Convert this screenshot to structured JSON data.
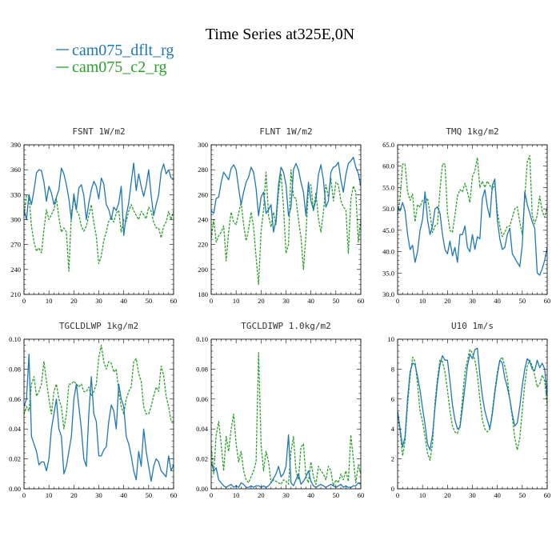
{
  "figure": {
    "title": "Time Series at325E,0N",
    "legend": [
      {
        "name": "cam075_dflt_rg",
        "color": "#1f77b4",
        "dash": "solid"
      },
      {
        "name": "cam075_c2_rg",
        "color": "#2ca02c",
        "dash": "dashed"
      }
    ]
  },
  "chart_data": [
    {
      "type": "line",
      "title": "FSNT   1W/m2",
      "xlim": [
        0,
        60
      ],
      "ylim": [
        210,
        390
      ],
      "xticks": [
        0,
        10,
        20,
        30,
        40,
        50,
        60
      ],
      "yticks": [
        210,
        240,
        270,
        300,
        330,
        360,
        390
      ],
      "ytick_labels": [
        "210",
        "240",
        "270",
        "300",
        "330",
        "360",
        "390"
      ],
      "series": [
        {
          "name": "cam075_dflt_rg",
          "color": "#1f77b4",
          "values": [
            312,
            300,
            330,
            318,
            335,
            356,
            360,
            359,
            345,
            322,
            340,
            332,
            318,
            327,
            336,
            362,
            355,
            342,
            325,
            300,
            331,
            312,
            338,
            342,
            329,
            300,
            320,
            336,
            346,
            340,
            325,
            350,
            343,
            318,
            312,
            300,
            315,
            311,
            320,
            340,
            281,
            305,
            320,
            345,
            368,
            335,
            355,
            340,
            328,
            341,
            360,
            329,
            305,
            318,
            330,
            357,
            367,
            355,
            360,
            350,
            349
          ]
        },
        {
          "name": "cam075_c2_rg",
          "color": "#2ca02c",
          "values": [
            305,
            329,
            328,
            292,
            273,
            262,
            266,
            260,
            288,
            312,
            300,
            306,
            312,
            325,
            302,
            285,
            290,
            285,
            238,
            307,
            325,
            311,
            306,
            292,
            286,
            292,
            305,
            318,
            296,
            280,
            247,
            256,
            275,
            285,
            298,
            303,
            297,
            308,
            311,
            285,
            300,
            298,
            310,
            318,
            311,
            305,
            300,
            310,
            306,
            301,
            315,
            310,
            297,
            290,
            290,
            278,
            292,
            297,
            310,
            300,
            310
          ]
        }
      ]
    },
    {
      "type": "line",
      "title": "FLNT   1W/m2",
      "xlim": [
        0,
        60
      ],
      "ylim": [
        180,
        300
      ],
      "xticks": [
        0,
        10,
        20,
        30,
        40,
        50,
        60
      ],
      "yticks": [
        180,
        200,
        220,
        240,
        260,
        280,
        300
      ],
      "ytick_labels": [
        "180",
        "200",
        "220",
        "240",
        "260",
        "280",
        "300"
      ],
      "series": [
        {
          "name": "cam075_dflt_rg",
          "color": "#1f77b4",
          "values": [
            247,
            245,
            257,
            258,
            270,
            278,
            275,
            272,
            281,
            284,
            280,
            265,
            252,
            262,
            270,
            274,
            282,
            278,
            265,
            243,
            258,
            262,
            245,
            248,
            252,
            230,
            240,
            268,
            282,
            278,
            268,
            243,
            250,
            280,
            285,
            280,
            270,
            262,
            243,
            270,
            255,
            248,
            256,
            276,
            284,
            272,
            250,
            255,
            278,
            282,
            283,
            286,
            272,
            262,
            276,
            285,
            287,
            290,
            282,
            277,
            267
          ]
        },
        {
          "name": "cam075_c2_rg",
          "color": "#2ca02c",
          "values": [
            225,
            240,
            222,
            227,
            230,
            235,
            207,
            230,
            246,
            238,
            236,
            245,
            254,
            236,
            223,
            232,
            246,
            234,
            210,
            188,
            230,
            248,
            278,
            243,
            234,
            246,
            236,
            262,
            277,
            250,
            213,
            220,
            280,
            258,
            257,
            240,
            226,
            200,
            228,
            265,
            268,
            247,
            262,
            241,
            230,
            246,
            268,
            258,
            273,
            255,
            270,
            268,
            255,
            250,
            248,
            213,
            256,
            267,
            262,
            222,
            240
          ]
        }
      ]
    },
    {
      "type": "line",
      "title": "TMQ   1kg/m2",
      "xlim": [
        0,
        60
      ],
      "ylim": [
        30,
        65
      ],
      "xticks": [
        0,
        10,
        20,
        30,
        40,
        50,
        60
      ],
      "yticks": [
        30,
        35,
        40,
        45,
        50,
        55,
        60,
        65
      ],
      "ytick_labels": [
        "30.0",
        "35.0",
        "40.0",
        "45.0",
        "50.0",
        "55.0",
        "60.0",
        "65.0"
      ],
      "series": [
        {
          "name": "cam075_dflt_rg",
          "color": "#1f77b4",
          "values": [
            50.5,
            49.5,
            51.5,
            49.5,
            44,
            40.5,
            41.5,
            37.5,
            40,
            45,
            47.5,
            54,
            47.5,
            44,
            46,
            50,
            50.5,
            49,
            44,
            40.5,
            39.5,
            42.5,
            39,
            41,
            37.5,
            44,
            44,
            46,
            41,
            40,
            44,
            40.5,
            43.5,
            43,
            52.5,
            54.5,
            50.5,
            48,
            55.5,
            57,
            47.5,
            43,
            40.5,
            41,
            44,
            45.5,
            39.5,
            38.5,
            37.5,
            36.5,
            41.5,
            54,
            51,
            49,
            47,
            45.5,
            35,
            34.5,
            36,
            38,
            41
          ]
        },
        {
          "name": "cam075_c2_rg",
          "color": "#2ca02c",
          "values": [
            48.5,
            52.5,
            60.5,
            60.5,
            54,
            52,
            53.5,
            47,
            51,
            50.5,
            52,
            51.5,
            52.5,
            49,
            44.5,
            46,
            46.5,
            54.5,
            60.5,
            60.5,
            49,
            45,
            44.5,
            48.5,
            53,
            54.5,
            54,
            56,
            54,
            51.5,
            57.5,
            59,
            62,
            55,
            56.5,
            55,
            56.5,
            55.5,
            54.5,
            56,
            49.5,
            46,
            43.5,
            44.5,
            46,
            46,
            48,
            50,
            50.5,
            47,
            44,
            52.5,
            61,
            62.5,
            48.5,
            46.5,
            48.5,
            53,
            49.5,
            48,
            50.5
          ]
        }
      ]
    },
    {
      "type": "line",
      "title": "TGCLDLWP   1kg/m2",
      "xlim": [
        0,
        60
      ],
      "ylim": [
        0,
        0.1
      ],
      "xticks": [
        0,
        10,
        20,
        30,
        40,
        50,
        60
      ],
      "yticks": [
        0,
        0.02,
        0.04,
        0.06,
        0.08,
        0.1
      ],
      "ytick_labels": [
        "0.00",
        "0.02",
        "0.04",
        "0.06",
        "0.08",
        "0.10"
      ],
      "series": [
        {
          "name": "cam075_dflt_rg",
          "color": "#1f77b4",
          "values": [
            0.055,
            0.06,
            0.09,
            0.035,
            0.03,
            0.025,
            0.016,
            0.018,
            0.018,
            0.012,
            0.02,
            0.04,
            0.05,
            0.06,
            0.04,
            0.035,
            0.01,
            0.015,
            0.025,
            0.035,
            0.06,
            0.07,
            0.055,
            0.04,
            0.02,
            0.015,
            0.05,
            0.075,
            0.05,
            0.045,
            0.022,
            0.022,
            0.026,
            0.028,
            0.045,
            0.056,
            0.052,
            0.04,
            0.07,
            0.06,
            0.055,
            0.035,
            0.03,
            0.022,
            0.012,
            0.006,
            0.025,
            0.015,
            0.04,
            0.025,
            0.015,
            0.005,
            0.015,
            0.02,
            0.018,
            0.012,
            0.01,
            0.008,
            0.022,
            0.012,
            0.016
          ]
        },
        {
          "name": "cam075_c2_rg",
          "color": "#2ca02c",
          "values": [
            0.05,
            0.055,
            0.052,
            0.07,
            0.075,
            0.062,
            0.065,
            0.07,
            0.085,
            0.072,
            0.06,
            0.05,
            0.065,
            0.07,
            0.06,
            0.055,
            0.04,
            0.05,
            0.07,
            0.07,
            0.072,
            0.07,
            0.068,
            0.07,
            0.065,
            0.065,
            0.068,
            0.062,
            0.065,
            0.07,
            0.088,
            0.096,
            0.085,
            0.08,
            0.085,
            0.084,
            0.078,
            0.08,
            0.065,
            0.055,
            0.05,
            0.06,
            0.065,
            0.068,
            0.085,
            0.087,
            0.077,
            0.072,
            0.055,
            0.05,
            0.05,
            0.055,
            0.062,
            0.068,
            0.065,
            0.082,
            0.076,
            0.062,
            0.055,
            0.045,
            0.045
          ]
        }
      ]
    },
    {
      "type": "line",
      "title": "TGCLDIWP   1.0kg/m2",
      "xlim": [
        0,
        60
      ],
      "ylim": [
        0,
        0.1
      ],
      "xticks": [
        0,
        10,
        20,
        30,
        40,
        50,
        60
      ],
      "yticks": [
        0,
        0.02,
        0.04,
        0.06,
        0.08,
        0.1
      ],
      "ytick_labels": [
        "0.00",
        "0.02",
        "0.04",
        "0.06",
        "0.08",
        "0.10"
      ],
      "series": [
        {
          "name": "cam075_dflt_rg",
          "color": "#1f77b4",
          "values": [
            0.018,
            0.012,
            0.014,
            0.006,
            0.004,
            0.002,
            0.001,
            0.002,
            0.003,
            0.001,
            0.002,
            0.001,
            0.004,
            0.003,
            0.001,
            0.001,
            0.002,
            0.001,
            0.002,
            0.002,
            0.001,
            0.002,
            0.001,
            0.002,
            0.004,
            0.007,
            0.01,
            0.015,
            0.008,
            0.01,
            0.015,
            0.036,
            0.004,
            0.002,
            0.006,
            0.01,
            0.003,
            0.005,
            0.008,
            0.012,
            0.005,
            0.002,
            0.001,
            0.002,
            0.003,
            0.002,
            0.001,
            0.002,
            0.003,
            0.002,
            0.001,
            0.002,
            0.003,
            0.001,
            0.002,
            0.001,
            0.001,
            0.002,
            0.002,
            0.004,
            0.003
          ]
        },
        {
          "name": "cam075_c2_rg",
          "color": "#2ca02c",
          "values": [
            0.028,
            0.01,
            0.036,
            0.045,
            0.03,
            0.012,
            0.035,
            0.025,
            0.04,
            0.05,
            0.03,
            0.018,
            0.025,
            0.012,
            0.006,
            0.004,
            0.008,
            0.012,
            0.018,
            0.091,
            0.03,
            0.012,
            0.025,
            0.018,
            0.004,
            0.006,
            0.005,
            0.004,
            0.003,
            0.006,
            0.005,
            0.003,
            0.025,
            0.035,
            0.012,
            0.006,
            0.028,
            0.03,
            0.008,
            0.004,
            0.018,
            0.008,
            0.003,
            0.015,
            0.012,
            0.01,
            0.006,
            0.015,
            0.012,
            0.002,
            0.006,
            0.004,
            0.01,
            0.006,
            0.012,
            0.005,
            0.036,
            0.02,
            0.004,
            0.016,
            0.01
          ]
        }
      ]
    },
    {
      "type": "line",
      "title": "U10   1m/s",
      "xlim": [
        0,
        60
      ],
      "ylim": [
        0,
        10
      ],
      "xticks": [
        0,
        10,
        20,
        30,
        40,
        50,
        60
      ],
      "yticks": [
        0,
        2,
        4,
        6,
        8,
        10
      ],
      "ytick_labels": [
        "0",
        "2",
        "4",
        "6",
        "8",
        "10"
      ],
      "series": [
        {
          "name": "cam075_dflt_rg",
          "color": "#1f77b4",
          "values": [
            5.2,
            4.0,
            2.8,
            3.5,
            6.0,
            7.8,
            8.4,
            8.3,
            7.5,
            6.6,
            5.4,
            4.3,
            3.0,
            2.6,
            3.6,
            5.4,
            7.1,
            8.3,
            8.9,
            8.6,
            8.6,
            7.2,
            5.6,
            4.6,
            4.0,
            4.1,
            5.4,
            6.8,
            8.2,
            9.0,
            8.7,
            9.3,
            9.4,
            7.6,
            6.2,
            5.2,
            4.6,
            4.0,
            5.0,
            6.4,
            7.6,
            8.6,
            8.4,
            7.4,
            6.8,
            6.0,
            5.0,
            4.2,
            4.4,
            5.5,
            6.9,
            8.0,
            8.7,
            8.5,
            8.0,
            7.9,
            8.6,
            8.1,
            8.4,
            8.0,
            6.2
          ]
        },
        {
          "name": "cam075_c2_rg",
          "color": "#2ca02c",
          "values": [
            5.0,
            3.8,
            2.2,
            3.2,
            5.6,
            7.5,
            8.8,
            8.5,
            7.0,
            5.2,
            4.5,
            3.5,
            2.4,
            1.9,
            3.0,
            5.8,
            7.4,
            8.6,
            8.5,
            7.8,
            6.6,
            5.2,
            4.2,
            3.8,
            3.7,
            4.2,
            6.0,
            7.8,
            8.6,
            9.3,
            9.1,
            8.6,
            7.6,
            6.0,
            4.6,
            4.0,
            3.8,
            4.0,
            5.2,
            6.6,
            7.8,
            8.6,
            8.8,
            8.2,
            7.4,
            6.0,
            4.8,
            3.4,
            2.6,
            3.4,
            5.2,
            7.0,
            8.2,
            8.6,
            8.2,
            7.6,
            6.8,
            7.0,
            7.6,
            7.2,
            5.6
          ]
        }
      ]
    }
  ]
}
